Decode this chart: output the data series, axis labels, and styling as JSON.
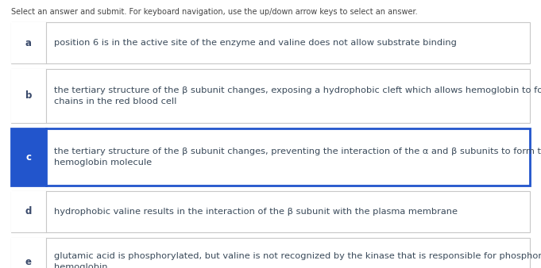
{
  "instruction": "Select an answer and submit. For keyboard navigation, use the up/down arrow keys to select an answer.",
  "options": [
    {
      "label": "a",
      "text": "position 6 is in the active site of the enzyme and valine does not allow substrate binding",
      "selected": false
    },
    {
      "label": "b",
      "text": "the tertiary structure of the β subunit changes, exposing a hydrophobic cleft which allows hemoglobin to form long\nchains in the red blood cell",
      "selected": false
    },
    {
      "label": "c",
      "text": "the tertiary structure of the β subunit changes, preventing the interaction of the α and β subunits to form the tetrameric\nhemoglobin molecule",
      "selected": true
    },
    {
      "label": "d",
      "text": "hydrophobic valine results in the interaction of the β subunit with the plasma membrane",
      "selected": false
    },
    {
      "label": "e",
      "text": "glutamic acid is phosphorylated, but valine is not recognized by the kinase that is responsible for phosphorylating\nhemoglobin",
      "selected": false
    }
  ],
  "bg_color": "#ffffff",
  "border_color_normal": "#c8c8c8",
  "border_color_selected": "#2255cc",
  "label_bg_normal": "#ffffff",
  "label_bg_selected": "#2255cc",
  "label_text_normal": "#3a4a6b",
  "label_text_selected": "#ffffff",
  "text_color": "#3a4a5a",
  "instruction_color": "#444444",
  "instruction_fontsize": 7.0,
  "label_fontsize": 8.5,
  "text_fontsize": 8.2,
  "fig_width": 6.81,
  "fig_height": 3.38,
  "fig_dpi": 100
}
